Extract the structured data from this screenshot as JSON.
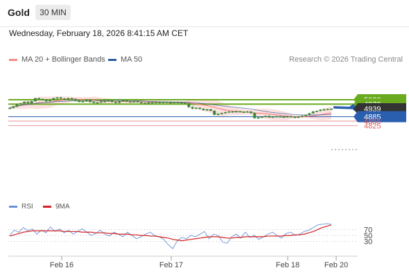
{
  "header": {
    "symbol": "Gold",
    "timeframe": "30 MIN",
    "datetime": "Wednesday, February 18, 2026 8:41:15 AM CET"
  },
  "legend": {
    "ma20_label": "MA 20 + Bollinger Bands",
    "ma50_label": "MA 50",
    "credit": "Research © 2026 Trading Central"
  },
  "rsi_legend": {
    "rsi_label": "RSI",
    "ma_label": "9MA"
  },
  "colors": {
    "ma20": "#f07070",
    "bollinger_fill": "#fde0e0",
    "ma50": "#2a5aa0",
    "candle": "#3a8a3a",
    "resistance": "#6aaa1e",
    "pivot": "#2a5fb0",
    "support": "#e06060",
    "current": "#333333",
    "arrow": "#2a5fb0",
    "rsi": "#6a8fd8",
    "rsi_ma": "#d42020"
  },
  "chart_data": [
    {
      "type": "candlestick",
      "title": "Gold",
      "xlabel": "",
      "ylabel": "",
      "ylim": [
        4812,
        5033
      ],
      "x_ticks": [
        "Feb 16",
        "Feb 17",
        "Feb 18",
        "Feb 20"
      ],
      "levels": [
        {
          "value": 5000,
          "label": "5000",
          "kind": "resistance"
        },
        {
          "value": 4970,
          "label": "4970",
          "kind": "resistance"
        },
        {
          "value": 4939,
          "label": "4939",
          "kind": "current"
        },
        {
          "value": 4885,
          "label": "4885",
          "kind": "pivot"
        },
        {
          "value": 4855,
          "label": "4855",
          "kind": "support"
        },
        {
          "value": 4825,
          "label": "4825",
          "kind": "support"
        }
      ],
      "close_approx": [
        4945,
        4955,
        4968,
        4975,
        4985,
        4975,
        4990,
        5010,
        5005,
        5000,
        4990,
        4998,
        5010,
        5015,
        5008,
        5000,
        5010,
        5005,
        4995,
        4985,
        4990,
        5000,
        4985,
        4978,
        4982,
        4990,
        4988,
        4995,
        4985,
        4980,
        4990,
        4995,
        4988,
        4985,
        4990,
        4983,
        4978,
        4975,
        4982,
        4980,
        4984,
        4980,
        4985,
        4982,
        4980,
        4984,
        4982,
        4978,
        4975,
        4950,
        4940,
        4945,
        4938,
        4930,
        4935,
        4925,
        4898,
        4905,
        4910,
        4915,
        4920,
        4918,
        4922,
        4915,
        4918,
        4920,
        4910,
        4875,
        4880,
        4885,
        4890,
        4880,
        4886,
        4888,
        4885,
        4882,
        4888,
        4885,
        4880,
        4885,
        4890,
        4898,
        4908,
        4920,
        4925,
        4932,
        4935,
        4937,
        4939
      ],
      "annotation": "Arrow projecting upward from 4939 toward 5000"
    },
    {
      "type": "line",
      "title": "RSI",
      "series_names": [
        "RSI",
        "9MA"
      ],
      "ylim": [
        20,
        80
      ],
      "y_ticks": [
        70,
        50,
        30
      ],
      "rsi_approx": [
        50,
        58,
        55,
        62,
        57,
        60,
        52,
        58,
        54,
        63,
        56,
        60,
        54,
        58,
        52,
        56,
        60,
        55,
        50,
        53,
        58,
        52,
        49,
        55,
        52,
        48,
        55,
        50,
        45,
        48,
        52,
        55,
        50,
        48,
        44,
        36,
        30,
        42,
        47,
        45,
        50,
        48,
        52,
        56,
        45,
        52,
        50,
        40,
        38,
        48,
        52,
        46,
        55,
        47,
        50,
        44,
        48,
        52,
        55,
        50,
        46,
        53,
        55,
        50,
        52,
        56,
        58,
        62,
        66,
        67,
        68,
        67
      ],
      "ma9_approx": [
        49,
        51,
        53,
        55,
        56,
        57,
        57,
        57,
        57,
        57,
        57,
        57,
        56,
        56,
        56,
        56,
        55,
        55,
        55,
        54,
        54,
        54,
        53,
        53,
        52,
        52,
        52,
        51,
        51,
        50,
        50,
        49,
        49,
        48,
        47,
        46,
        44,
        43,
        42,
        43,
        44,
        45,
        46,
        47,
        48,
        48,
        48,
        47,
        46,
        46,
        47,
        47,
        48,
        48,
        48,
        48,
        48,
        49,
        49,
        49,
        49,
        50,
        50,
        51,
        51,
        52,
        54,
        56,
        59,
        62,
        64,
        66
      ]
    }
  ]
}
